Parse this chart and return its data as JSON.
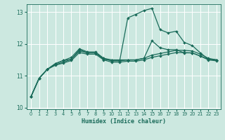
{
  "xlabel": "Humidex (Indice chaleur)",
  "bg_color": "#cce8e0",
  "grid_color": "#ffffff",
  "line_color": "#1a6b5a",
  "xlim": [
    -0.5,
    23.5
  ],
  "ylim": [
    9.95,
    13.25
  ],
  "yticks": [
    10,
    11,
    12,
    13
  ],
  "xticks": [
    0,
    1,
    2,
    3,
    4,
    5,
    6,
    7,
    8,
    9,
    10,
    11,
    12,
    13,
    14,
    15,
    16,
    17,
    18,
    19,
    20,
    21,
    22,
    23
  ],
  "curves": [
    [
      10.35,
      10.92,
      11.2,
      11.38,
      11.48,
      11.52,
      11.82,
      11.72,
      11.72,
      11.52,
      11.48,
      11.48,
      12.82,
      12.93,
      13.05,
      13.12,
      12.45,
      12.35,
      12.4,
      12.05,
      11.95,
      11.72,
      11.52,
      11.5
    ],
    [
      10.35,
      10.92,
      11.2,
      11.38,
      11.48,
      11.58,
      11.85,
      11.75,
      11.75,
      11.55,
      11.5,
      11.5,
      11.5,
      11.5,
      11.55,
      12.1,
      11.88,
      11.82,
      11.82,
      11.72,
      11.72,
      11.62,
      11.52,
      11.5
    ],
    [
      10.35,
      10.92,
      11.2,
      11.35,
      11.43,
      11.52,
      11.78,
      11.72,
      11.72,
      11.55,
      11.47,
      11.47,
      11.5,
      11.5,
      11.55,
      11.65,
      11.7,
      11.75,
      11.8,
      11.8,
      11.78,
      11.68,
      11.55,
      11.5
    ],
    [
      10.35,
      10.92,
      11.2,
      11.33,
      11.4,
      11.48,
      11.73,
      11.68,
      11.68,
      11.5,
      11.43,
      11.43,
      11.46,
      11.46,
      11.5,
      11.58,
      11.63,
      11.68,
      11.73,
      11.73,
      11.72,
      11.62,
      11.5,
      11.47
    ]
  ],
  "marker": "D",
  "markersize": 2.0,
  "linewidth": 0.9
}
